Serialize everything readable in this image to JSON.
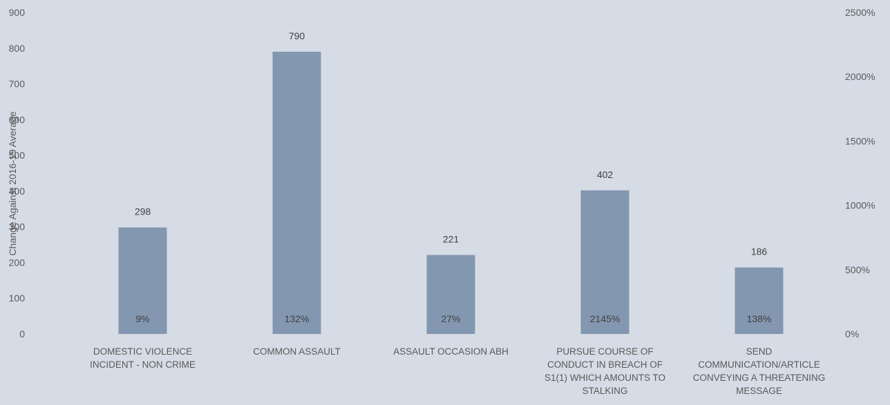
{
  "chart_data": {
    "type": "bar",
    "categories": [
      [
        "DOMESTIC VIOLENCE",
        "INCIDENT - NON CRIME"
      ],
      [
        "COMMON ASSAULT"
      ],
      [
        "ASSAULT OCCASION ABH"
      ],
      [
        "PURSUE COURSE OF",
        "CONDUCT IN BREACH OF",
        "S1(1) WHICH AMOUNTS TO",
        "STALKING"
      ],
      [
        "SEND",
        "COMMUNICATION/ARTICLE",
        "CONVEYING A THREATENING",
        "MESSAGE"
      ]
    ],
    "series": [
      {
        "values": [
          298,
          790,
          221,
          402,
          186
        ]
      }
    ],
    "percent_change": [
      "9%",
      "132%",
      "27%",
      "2145%",
      "138%"
    ],
    "ylabel": "Change Against 2016-19 Average",
    "ylim": [
      0,
      900
    ],
    "yticks": [
      "0",
      "100",
      "200",
      "300",
      "400",
      "500",
      "600",
      "700",
      "800",
      "900"
    ],
    "y2ticks": [
      "0%",
      "500%",
      "1000%",
      "1500%",
      "2000%",
      "2500%"
    ],
    "bar_color": "#8497b0",
    "grid": false
  }
}
